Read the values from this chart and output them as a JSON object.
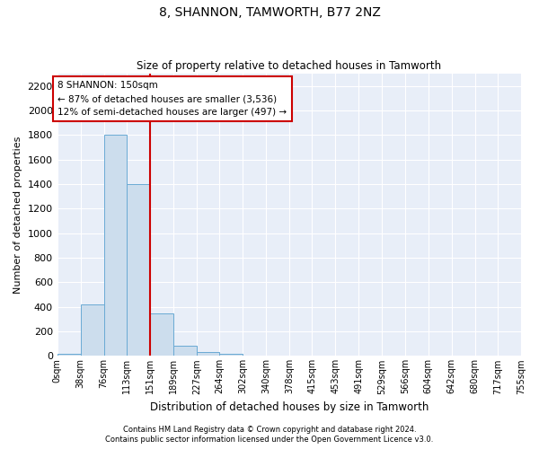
{
  "title": "8, SHANNON, TAMWORTH, B77 2NZ",
  "subtitle": "Size of property relative to detached houses in Tamworth",
  "xlabel": "Distribution of detached houses by size in Tamworth",
  "ylabel": "Number of detached properties",
  "bar_color": "#ccdded",
  "bar_edge_color": "#6aaad4",
  "background_color": "#e8eef8",
  "bins": [
    0,
    38,
    76,
    113,
    151,
    189,
    227,
    264,
    302,
    340,
    378,
    415,
    453,
    491,
    529,
    566,
    604,
    642,
    680,
    717,
    755
  ],
  "bin_labels": [
    "0sqm",
    "38sqm",
    "76sqm",
    "113sqm",
    "151sqm",
    "189sqm",
    "227sqm",
    "264sqm",
    "302sqm",
    "340sqm",
    "378sqm",
    "415sqm",
    "453sqm",
    "491sqm",
    "529sqm",
    "566sqm",
    "604sqm",
    "642sqm",
    "680sqm",
    "717sqm",
    "755sqm"
  ],
  "bar_heights": [
    15,
    420,
    1800,
    1400,
    350,
    80,
    30,
    20,
    0,
    0,
    0,
    0,
    0,
    0,
    0,
    0,
    0,
    0,
    0,
    0
  ],
  "ylim": [
    0,
    2300
  ],
  "yticks": [
    0,
    200,
    400,
    600,
    800,
    1000,
    1200,
    1400,
    1600,
    1800,
    2000,
    2200
  ],
  "vline_x": 151,
  "vline_color": "#cc0000",
  "annotation_line1": "8 SHANNON: 150sqm",
  "annotation_line2": "← 87% of detached houses are smaller (3,536)",
  "annotation_line3": "12% of semi-detached houses are larger (497) →",
  "annotation_box_color": "#ffffff",
  "annotation_box_edge": "#cc0000",
  "footer_line1": "Contains HM Land Registry data © Crown copyright and database right 2024.",
  "footer_line2": "Contains public sector information licensed under the Open Government Licence v3.0."
}
